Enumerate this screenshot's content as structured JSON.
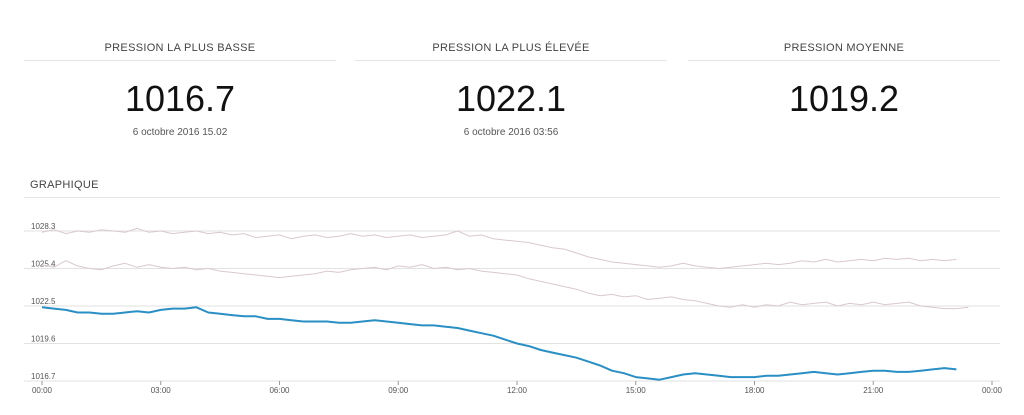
{
  "stats": [
    {
      "label": "PRESSION LA PLUS BASSE",
      "value": "1016.7",
      "time": "6 octobre 2016 15.02"
    },
    {
      "label": "PRESSION LA PLUS ÉLEVÉE",
      "value": "1022.1",
      "time": "6 octobre 2016 03:56"
    },
    {
      "label": "PRESSION MOYENNE",
      "value": "1019.2",
      "time": ""
    }
  ],
  "section": {
    "title": "GRAPHIQUE"
  },
  "colors": {
    "main": "#2a8fc4",
    "ghost": "#d9c9cc",
    "grid": "#e2e2e2"
  },
  "chart_data": {
    "type": "line",
    "ylim": [
      1016.7,
      1028.3
    ],
    "yticks": [
      {
        "value": 1028.3,
        "label": "1028.3"
      },
      {
        "value": 1025.4,
        "label": "1025.4"
      },
      {
        "value": 1022.5,
        "label": "1022.5"
      },
      {
        "value": 1019.6,
        "label": "1019.6"
      },
      {
        "value": 1016.7,
        "label": "1016.7"
      }
    ],
    "xlim": [
      0,
      24
    ],
    "xticks": [
      {
        "value": 0,
        "label": "00:00"
      },
      {
        "value": 3,
        "label": "03:00"
      },
      {
        "value": 6,
        "label": "06:00"
      },
      {
        "value": 9,
        "label": "09:00"
      },
      {
        "value": 12,
        "label": "12:00"
      },
      {
        "value": 15,
        "label": "15:00"
      },
      {
        "value": 18,
        "label": "18:00"
      },
      {
        "value": 21,
        "label": "21:00"
      },
      {
        "value": 24,
        "label": "00:00"
      }
    ],
    "grid": true,
    "series": [
      {
        "style": "main",
        "x": [
          0,
          0.3,
          0.6,
          0.9,
          1.2,
          1.5,
          1.8,
          2.1,
          2.4,
          2.7,
          3.0,
          3.3,
          3.6,
          3.9,
          4.2,
          4.5,
          4.8,
          5.1,
          5.4,
          5.7,
          6.0,
          6.3,
          6.6,
          6.9,
          7.2,
          7.5,
          7.8,
          8.1,
          8.4,
          8.7,
          9.0,
          9.3,
          9.6,
          9.9,
          10.2,
          10.5,
          10.8,
          11.1,
          11.4,
          11.7,
          12.0,
          12.3,
          12.6,
          12.9,
          13.2,
          13.5,
          13.8,
          14.1,
          14.4,
          14.7,
          15.0,
          15.3,
          15.6,
          15.9,
          16.2,
          16.5,
          16.8,
          17.1,
          17.4,
          17.7,
          18.0,
          18.3,
          18.6,
          18.9,
          19.2,
          19.5,
          19.8,
          20.1,
          20.4,
          20.7,
          21.0,
          21.3,
          21.6,
          21.9,
          22.2,
          22.5,
          22.8,
          23.1
        ],
        "y": [
          1022.4,
          1022.3,
          1022.2,
          1022.0,
          1022.0,
          1021.9,
          1021.9,
          1022.0,
          1022.1,
          1022.0,
          1022.2,
          1022.3,
          1022.3,
          1022.4,
          1022.0,
          1021.9,
          1021.8,
          1021.7,
          1021.7,
          1021.5,
          1021.5,
          1021.4,
          1021.3,
          1021.3,
          1021.3,
          1021.2,
          1021.2,
          1021.3,
          1021.4,
          1021.3,
          1021.2,
          1021.1,
          1021.0,
          1021.0,
          1020.9,
          1020.8,
          1020.6,
          1020.4,
          1020.2,
          1019.9,
          1019.6,
          1019.4,
          1019.1,
          1018.9,
          1018.7,
          1018.5,
          1018.2,
          1017.9,
          1017.5,
          1017.3,
          1017.0,
          1016.9,
          1016.8,
          1017.0,
          1017.2,
          1017.3,
          1017.2,
          1017.1,
          1017.0,
          1017.0,
          1017.0,
          1017.1,
          1017.1,
          1017.2,
          1017.3,
          1017.4,
          1017.3,
          1017.2,
          1017.3,
          1017.4,
          1017.5,
          1017.5,
          1017.4,
          1017.4,
          1017.5,
          1017.6,
          1017.7,
          1017.6
        ]
      },
      {
        "style": "ghost",
        "x": [
          0,
          0.3,
          0.6,
          0.9,
          1.2,
          1.5,
          1.8,
          2.1,
          2.4,
          2.7,
          3.0,
          3.3,
          3.6,
          3.9,
          4.2,
          4.5,
          4.8,
          5.1,
          5.4,
          5.7,
          6.0,
          6.3,
          6.6,
          6.9,
          7.2,
          7.5,
          7.8,
          8.1,
          8.4,
          8.7,
          9.0,
          9.3,
          9.6,
          9.9,
          10.2,
          10.5,
          10.8,
          11.1,
          11.4,
          11.7,
          12.0,
          12.3,
          12.6,
          12.9,
          13.2,
          13.5,
          13.8,
          14.1,
          14.4,
          14.7,
          15.0,
          15.3,
          15.6,
          15.9,
          16.2,
          16.5,
          16.8,
          17.1,
          17.4,
          17.7,
          18.0,
          18.3,
          18.6,
          18.9,
          19.2,
          19.5,
          19.8,
          20.1,
          20.4,
          20.7,
          21.0,
          21.3,
          21.6,
          21.9,
          22.2,
          22.5,
          22.8,
          23.1
        ],
        "y": [
          1028.2,
          1028.4,
          1028.1,
          1028.3,
          1028.2,
          1028.4,
          1028.3,
          1028.2,
          1028.5,
          1028.2,
          1028.3,
          1028.1,
          1028.2,
          1028.3,
          1028.1,
          1028.2,
          1028.0,
          1028.1,
          1027.8,
          1027.9,
          1028.0,
          1027.7,
          1027.9,
          1028.0,
          1027.8,
          1027.9,
          1028.1,
          1027.9,
          1028.0,
          1027.8,
          1027.9,
          1028.0,
          1027.8,
          1027.9,
          1028.0,
          1028.3,
          1027.9,
          1028.0,
          1027.7,
          1027.6,
          1027.5,
          1027.4,
          1027.2,
          1027.0,
          1026.9,
          1026.6,
          1026.3,
          1026.1,
          1025.9,
          1025.8,
          1025.7,
          1025.6,
          1025.5,
          1025.6,
          1025.8,
          1025.6,
          1025.5,
          1025.4,
          1025.5,
          1025.6,
          1025.7,
          1025.8,
          1025.7,
          1025.8,
          1026.0,
          1025.9,
          1026.1,
          1025.9,
          1026.0,
          1026.1,
          1026.0,
          1026.2,
          1026.1,
          1026.2,
          1026.0,
          1026.1,
          1026.0,
          1026.1
        ]
      },
      {
        "style": "ghost",
        "x": [
          0,
          0.3,
          0.6,
          0.9,
          1.2,
          1.5,
          1.8,
          2.1,
          2.4,
          2.7,
          3.0,
          3.3,
          3.6,
          3.9,
          4.2,
          4.5,
          4.8,
          5.1,
          5.4,
          5.7,
          6.0,
          6.3,
          6.6,
          6.9,
          7.2,
          7.5,
          7.8,
          8.1,
          8.4,
          8.7,
          9.0,
          9.3,
          9.6,
          9.9,
          10.2,
          10.5,
          10.8,
          11.1,
          11.4,
          11.7,
          12.0,
          12.3,
          12.6,
          12.9,
          13.2,
          13.5,
          13.8,
          14.1,
          14.4,
          14.7,
          15.0,
          15.3,
          15.6,
          15.9,
          16.2,
          16.5,
          16.8,
          17.1,
          17.4,
          17.7,
          18.0,
          18.3,
          18.6,
          18.9,
          19.2,
          19.5,
          19.8,
          20.1,
          20.4,
          20.7,
          21.0,
          21.3,
          21.6,
          21.9,
          22.2,
          22.5,
          22.8,
          23.1,
          23.4
        ],
        "y": [
          1025.7,
          1025.5,
          1026.0,
          1025.6,
          1025.4,
          1025.3,
          1025.6,
          1025.8,
          1025.5,
          1025.7,
          1025.5,
          1025.4,
          1025.5,
          1025.3,
          1025.4,
          1025.2,
          1025.1,
          1025.0,
          1024.9,
          1024.8,
          1024.7,
          1024.8,
          1024.9,
          1025.0,
          1025.2,
          1025.1,
          1025.3,
          1025.4,
          1025.5,
          1025.3,
          1025.6,
          1025.5,
          1025.7,
          1025.4,
          1025.5,
          1025.3,
          1025.4,
          1025.2,
          1025.1,
          1025.0,
          1024.9,
          1024.6,
          1024.4,
          1024.2,
          1024.0,
          1023.8,
          1023.5,
          1023.3,
          1023.4,
          1023.2,
          1023.3,
          1023.0,
          1023.1,
          1023.2,
          1023.0,
          1022.9,
          1022.7,
          1022.5,
          1022.4,
          1022.6,
          1022.4,
          1022.6,
          1022.5,
          1022.8,
          1022.6,
          1022.7,
          1022.8,
          1022.5,
          1022.7,
          1022.6,
          1022.8,
          1022.6,
          1022.7,
          1022.8,
          1022.5,
          1022.4,
          1022.3,
          1022.3,
          1022.4
        ]
      }
    ]
  }
}
